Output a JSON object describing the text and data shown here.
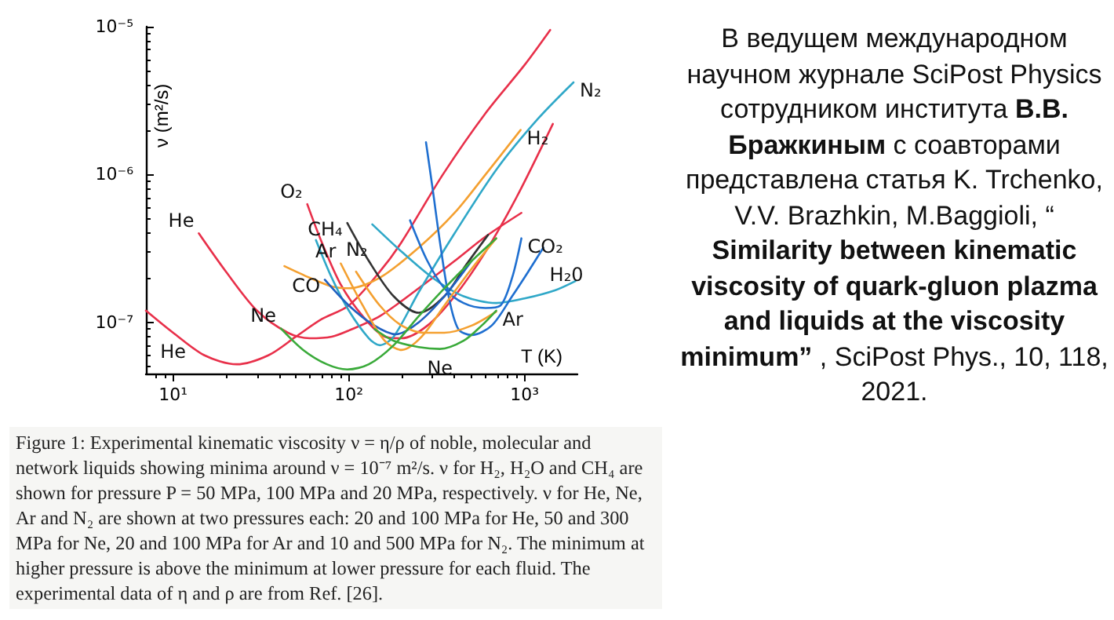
{
  "chart_data": {
    "type": "line",
    "xlabel": "T (K)",
    "ylabel": "ν (m²/s)",
    "xlim": [
      7,
      2000
    ],
    "ylim": [
      4.5e-08,
      1e-05
    ],
    "log": "xy",
    "grid": false,
    "marker": "none",
    "line_style": "solid",
    "xticks": [
      {
        "value": 10,
        "label": "10¹"
      },
      {
        "value": 100,
        "label": "10²"
      },
      {
        "value": 1000,
        "label": "10³"
      }
    ],
    "yticks": [
      {
        "value": 1e-07,
        "label": "10⁻⁷"
      },
      {
        "value": 1e-06,
        "label": "10⁻⁶"
      },
      {
        "value": 1e-05,
        "label": "10⁻⁵"
      }
    ],
    "series": [
      {
        "color": "#e8304a",
        "x": [
          7,
          10,
          15,
          23,
          35,
          50,
          70,
          100,
          150,
          200,
          343,
          600,
          1000,
          1400
        ],
        "values": [
          1.2e-07,
          8.5e-08,
          6e-08,
          5.2e-08,
          6e-08,
          8e-08,
          1.05e-07,
          1.3e-07,
          2.2e-07,
          3.5e-07,
          1e-06,
          2.6e-06,
          5.5e-06,
          9.5e-06
        ]
      },
      {
        "color": "#e8304a",
        "x": [
          14,
          20,
          30,
          45,
          60,
          80,
          100,
          150,
          250,
          400,
          600,
          960
        ],
        "values": [
          4e-07,
          2.2e-07,
          1.2e-07,
          8.5e-08,
          7.8e-08,
          8e-08,
          8.8e-08,
          1.1e-07,
          1.7e-07,
          2.6e-07,
          3.8e-07,
          5.5e-07
        ]
      },
      {
        "color": "#e8304a",
        "x": [
          58,
          70,
          90,
          120,
          160,
          200,
          280,
          400,
          600,
          900,
          1450
        ],
        "values": [
          6.3e-07,
          3.5e-07,
          1.8e-07,
          1.1e-07,
          8e-08,
          7.8e-08,
          9.5e-08,
          1.5e-07,
          3e-07,
          7e-07,
          2.2e-06
        ]
      },
      {
        "color": "#f4a030",
        "x": [
          43,
          60,
          80,
          100,
          150,
          250,
          400,
          600,
          950
        ],
        "values": [
          2.4e-07,
          2e-07,
          1.75e-07,
          1.7e-07,
          2e-07,
          3.2e-07,
          5.5e-07,
          1e-06,
          2e-06
        ]
      },
      {
        "color": "#30a8c8",
        "x": [
          65,
          80,
          100,
          130,
          150,
          180,
          250,
          400,
          700,
          1200,
          1900
        ],
        "values": [
          3.6e-07,
          2e-07,
          1.2e-07,
          7.8e-08,
          7e-08,
          8e-08,
          1.6e-07,
          4e-07,
          1.1e-06,
          2.4e-06,
          4.2e-06
        ]
      },
      {
        "color": "#30a8c8",
        "x": [
          136,
          200,
          300,
          450,
          690,
          1000,
          1500,
          1950
        ],
        "values": [
          4.6e-07,
          3e-07,
          2e-07,
          1.5e-07,
          1.35e-07,
          1.45e-07,
          1.65e-07,
          1.9e-07
        ]
      },
      {
        "color": "#333333",
        "x": [
          98,
          130,
          180,
          250,
          350,
          460,
          620
        ],
        "values": [
          4.7e-07,
          2.6e-07,
          1.5e-07,
          1.16e-07,
          1.5e-07,
          2.4e-07,
          3.9e-07
        ]
      },
      {
        "color": "#2060c0",
        "x": [
          73,
          100,
          140,
          185,
          250,
          350,
          500
        ],
        "values": [
          1.94e-07,
          1.3e-07,
          9.5e-08,
          8.3e-08,
          1e-07,
          1.5e-07,
          2.6e-07
        ]
      },
      {
        "color": "#1f6fd0",
        "x": [
          223,
          280,
          350,
          450,
          600,
          730,
          850,
          960
        ],
        "values": [
          4.9e-07,
          2.6e-07,
          1.7e-07,
          1.35e-07,
          1.25e-07,
          1.3e-07,
          2e-07,
          3.7e-07
        ]
      },
      {
        "color": "#1f6fd0",
        "x": [
          275,
          300,
          330,
          370,
          420,
          500,
          650,
          850,
          1050,
          1280
        ],
        "values": [
          1.65e-06,
          8e-07,
          3.5e-07,
          1.5e-07,
          9e-08,
          8.2e-08,
          9.5e-08,
          1.5e-07,
          2.2e-07,
          3.2e-07
        ]
      },
      {
        "color": "#f4a030",
        "x": [
          90,
          120,
          160,
          200,
          260,
          350,
          500,
          690
        ],
        "values": [
          2.5e-07,
          1.3e-07,
          7.5e-08,
          6.5e-08,
          8e-08,
          1.3e-07,
          2.3e-07,
          3.7e-07
        ]
      },
      {
        "color": "#f4a030",
        "x": [
          110,
          150,
          200,
          270,
          350,
          500,
          690
        ],
        "values": [
          2.2e-07,
          1.3e-07,
          9.5e-08,
          8.5e-08,
          8.5e-08,
          9.5e-08,
          1.18e-07
        ]
      },
      {
        "color": "#3aaa3a",
        "x": [
          41,
          55,
          75,
          98,
          130,
          180,
          250,
          350,
          500,
          690
        ],
        "values": [
          9.1e-08,
          6.5e-08,
          5.2e-08,
          4.8e-08,
          5.2e-08,
          7e-08,
          1.1e-07,
          1.7e-07,
          2.6e-07,
          3.7e-07
        ]
      },
      {
        "color": "#3aaa3a",
        "x": [
          140,
          180,
          250,
          330,
          450,
          570,
          690
        ],
        "values": [
          9e-08,
          7.5e-08,
          6.8e-08,
          6.6e-08,
          7.5e-08,
          9.5e-08,
          1.2e-07
        ]
      }
    ],
    "annotations": [
      "Figure 1: Experimental kinematic viscosity ν = η/ρ of noble, molecular and network liquids showing minima around ν = 10⁻⁷ m²/s. ν for H₂, H₂O and CH₄ are shown for pressure P = 50 MPa, 100 MPa and 20 MPa, respectively. ν for He, Ne, Ar and N₂ are shown at two pressures each: 20 and 100 MPa for He, 50 and 300 MPa for Ne, 20 and 100 MPa for Ar and 10 and 500 MPa for N₂. The minimum at higher pressure is above the minimum at lower pressure for each fluid. The experimental data of η and ρ are from Ref. [26].",
      "В ведущем международном научном журнале SciPost Physics сотрудником института",
      "В.В. Бражкиным",
      "с соавторами представлена статья K. Trchenko, V.V. Brazhkin, M.Baggioli, “",
      "Similarity between kinematic viscosity of quark-gluon plazma and liquids at the viscosity minimum”",
      ", SciPost Phys., 10, 118, 2021.",
      {
        "text": "He",
        "x": 10,
        "y": 8.5e-08
      },
      {
        "text": "He",
        "x": 14,
        "y": 4e-07
      },
      {
        "text": "Ne",
        "x": 41,
        "y": 9.1e-08
      },
      {
        "text": "O₂",
        "x": 58,
        "y": 6.3e-07
      },
      {
        "text": "CH₄",
        "x": 98,
        "y": 4.7e-07
      },
      {
        "text": "N₂",
        "x": 136,
        "y": 4.6e-07
      },
      {
        "text": "Ar",
        "x": 90,
        "y": 2.5e-07
      },
      {
        "text": "CO",
        "x": 73,
        "y": 1.94e-07
      },
      {
        "text": "H₂",
        "x": 950,
        "y": 2e-06
      },
      {
        "text": "N₂",
        "x": 1900,
        "y": 4.2e-06
      },
      {
        "text": "CO₂",
        "x": 960,
        "y": 3.7e-07
      },
      {
        "text": "H₂0",
        "x": 1280,
        "y": 3.2e-07
      },
      {
        "text": "Ar",
        "x": 690,
        "y": 1.18e-07
      },
      {
        "text": "Ne",
        "x": 330,
        "y": 6.6e-08
      }
    ]
  }
}
